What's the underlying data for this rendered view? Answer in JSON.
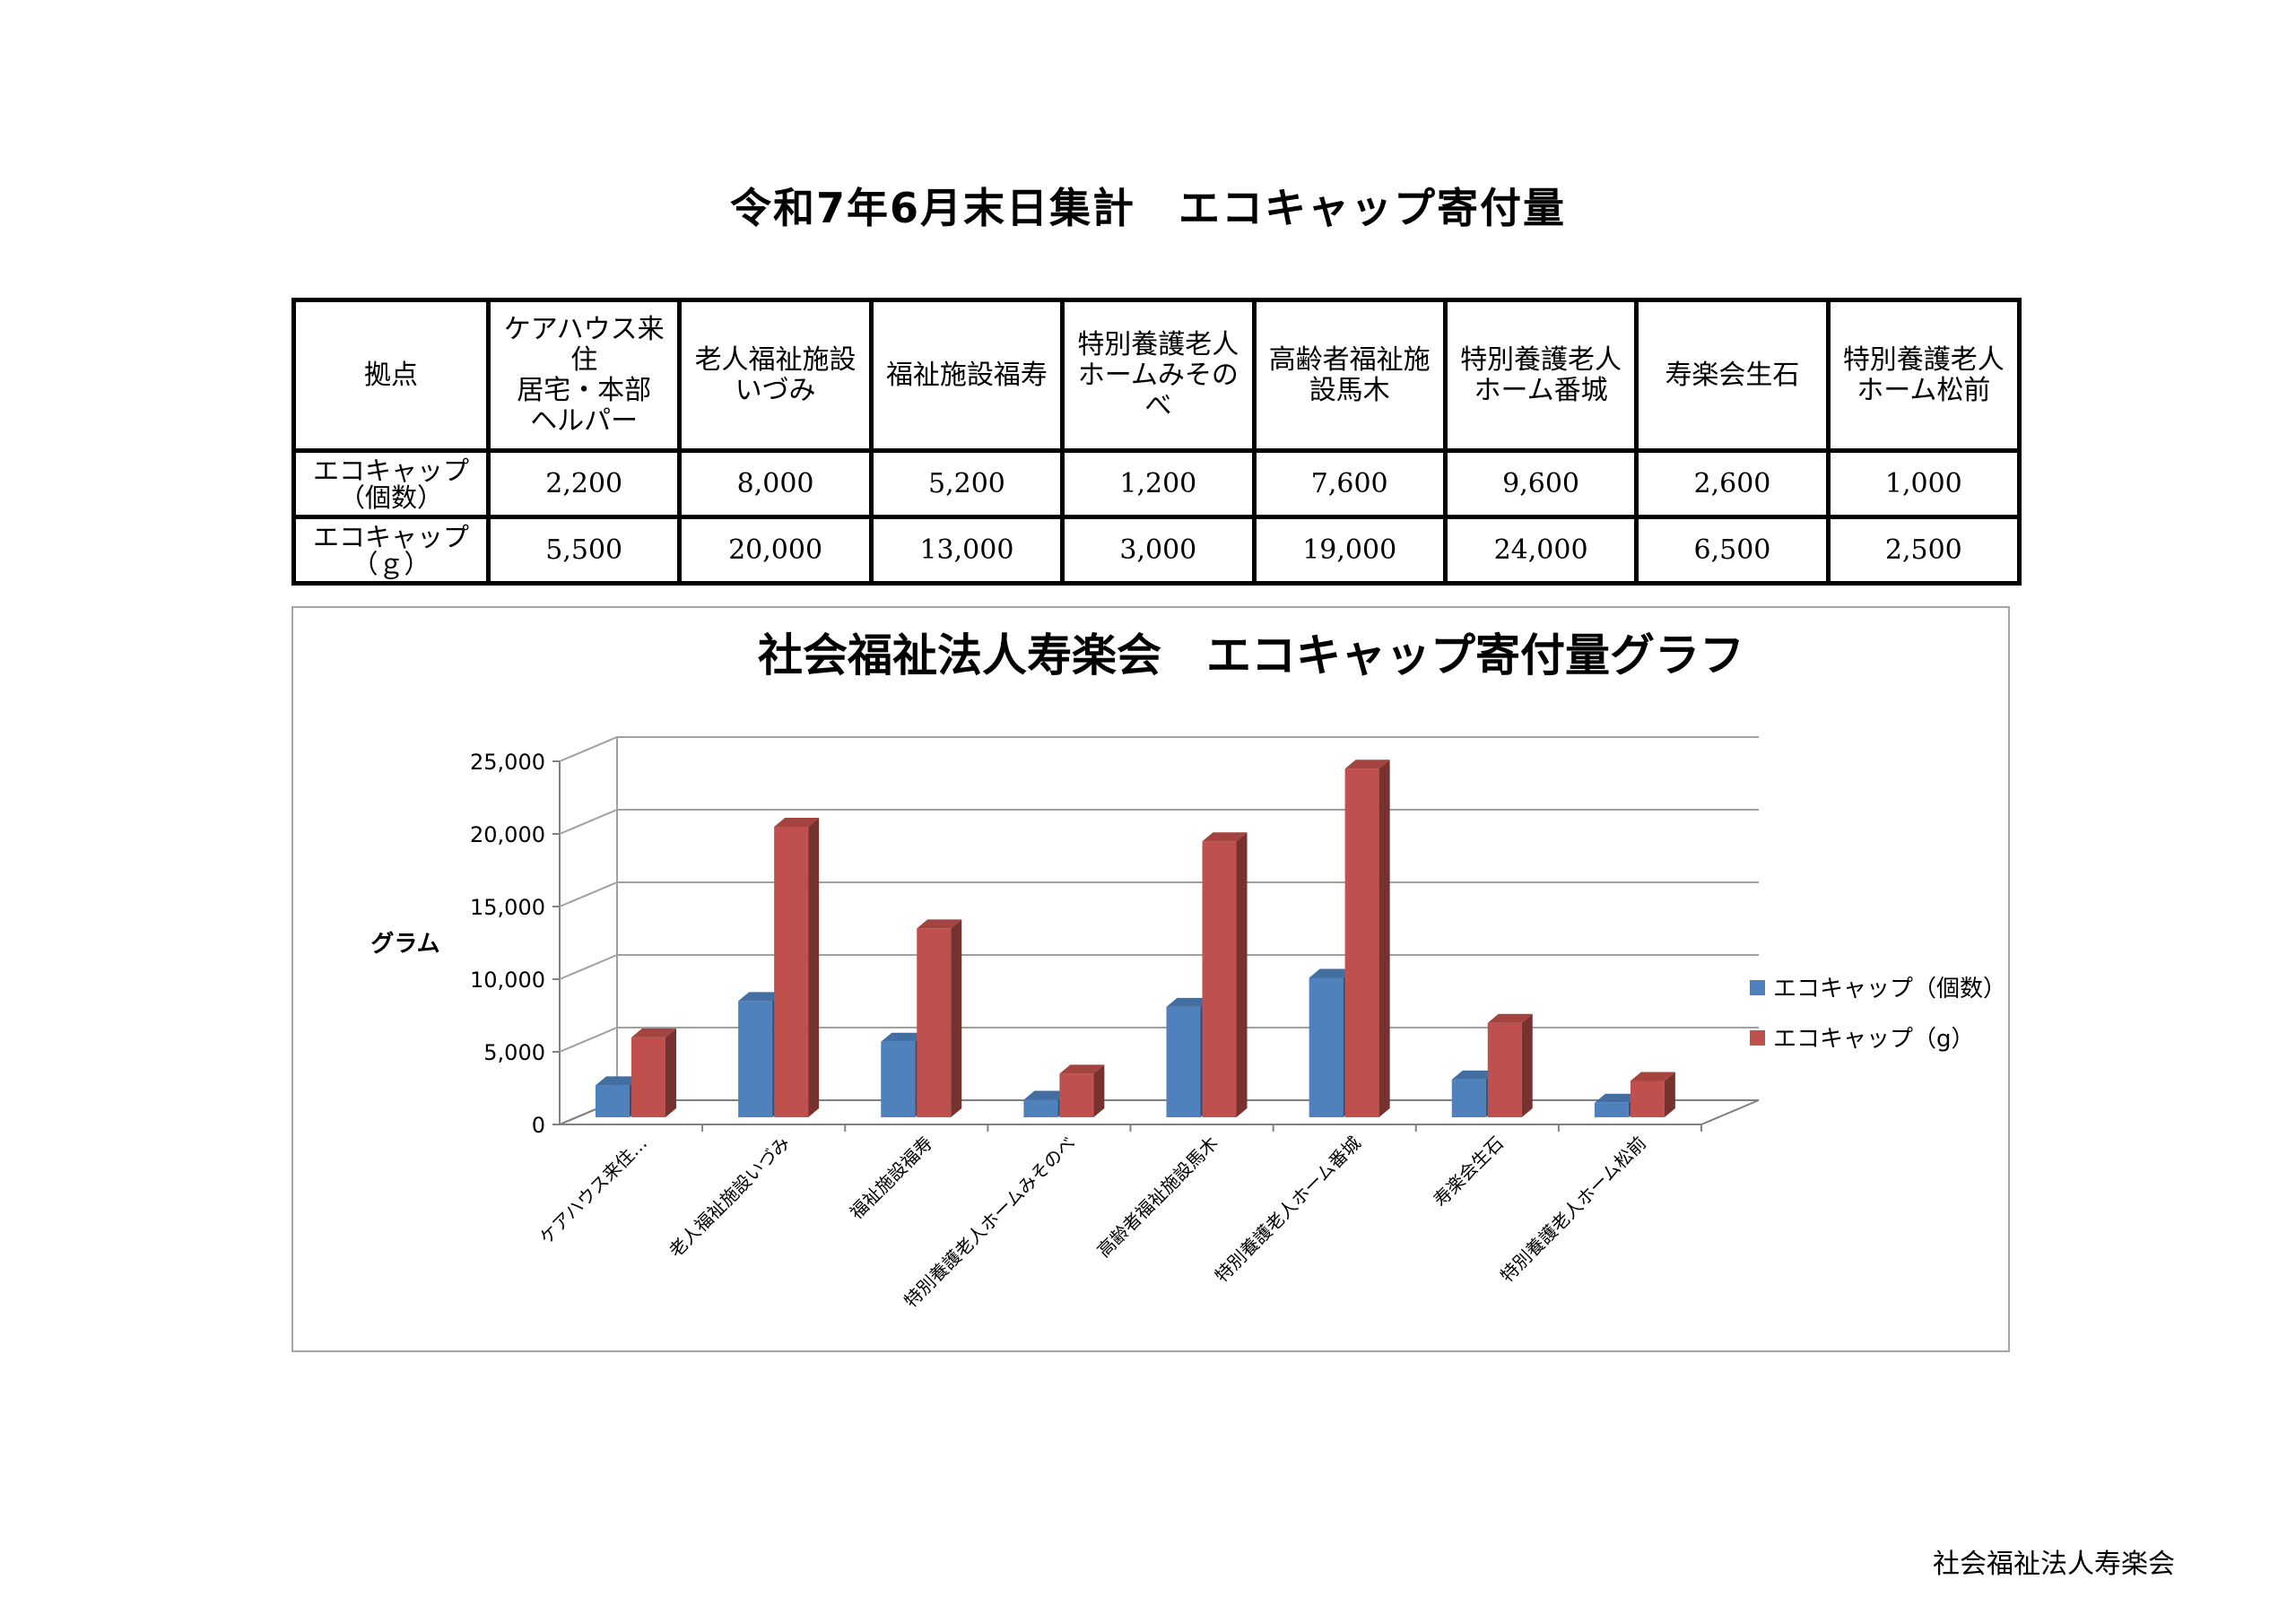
{
  "page": {
    "title": "令和7年6月末日集計　エコキャップ寄付量",
    "footer": "社会福祉法人寿楽会"
  },
  "table": {
    "corner_label": "拠点",
    "columns": [
      "ケアハウス来\n住\n居宅・本部\nヘルパー",
      "老人福祉施設\nいづみ",
      "福祉施設福寿",
      "特別養護老人\nホームみその\nべ",
      "高齢者福祉施\n設馬木",
      "特別養護老人\nホーム番城",
      "寿楽会生石",
      "特別養護老人\nホーム松前"
    ],
    "rows": [
      {
        "label": "エコキャップ\n（個数）",
        "values": [
          "2,200",
          "8,000",
          "5,200",
          "1,200",
          "7,600",
          "9,600",
          "2,600",
          "1,000"
        ]
      },
      {
        "label": "エコキャップ\n（ｇ）",
        "values": [
          "5,500",
          "20,000",
          "13,000",
          "3,000",
          "19,000",
          "24,000",
          "6,500",
          "2,500"
        ]
      }
    ]
  },
  "chart_data": {
    "type": "bar",
    "title": "社会福祉法人寿楽会　エコキャップ寄付量グラフ",
    "ylabel": "グラム",
    "xlabel": "",
    "ylim": [
      0,
      25000
    ],
    "yticks": [
      "0",
      "5,000",
      "10,000",
      "15,000",
      "20,000",
      "25,000"
    ],
    "categories": [
      "ケアハウス来住…",
      "老人福祉施設いづみ",
      "福祉施設福寿",
      "特別養護老人ホームみそのべ",
      "高齢者福祉施設馬木",
      "特別養護老人ホーム番城",
      "寿楽会生石",
      "特別養護老人ホーム松前"
    ],
    "series": [
      {
        "name": "エコキャップ（個数）",
        "color": "#4f81bd",
        "values": [
          2200,
          8000,
          5200,
          1200,
          7600,
          9600,
          2600,
          1000
        ]
      },
      {
        "name": "エコキャップ（g）",
        "color": "#c0504d",
        "values": [
          5500,
          20000,
          13000,
          3000,
          19000,
          24000,
          6500,
          2500
        ]
      }
    ],
    "grid": true,
    "legend": "right"
  }
}
